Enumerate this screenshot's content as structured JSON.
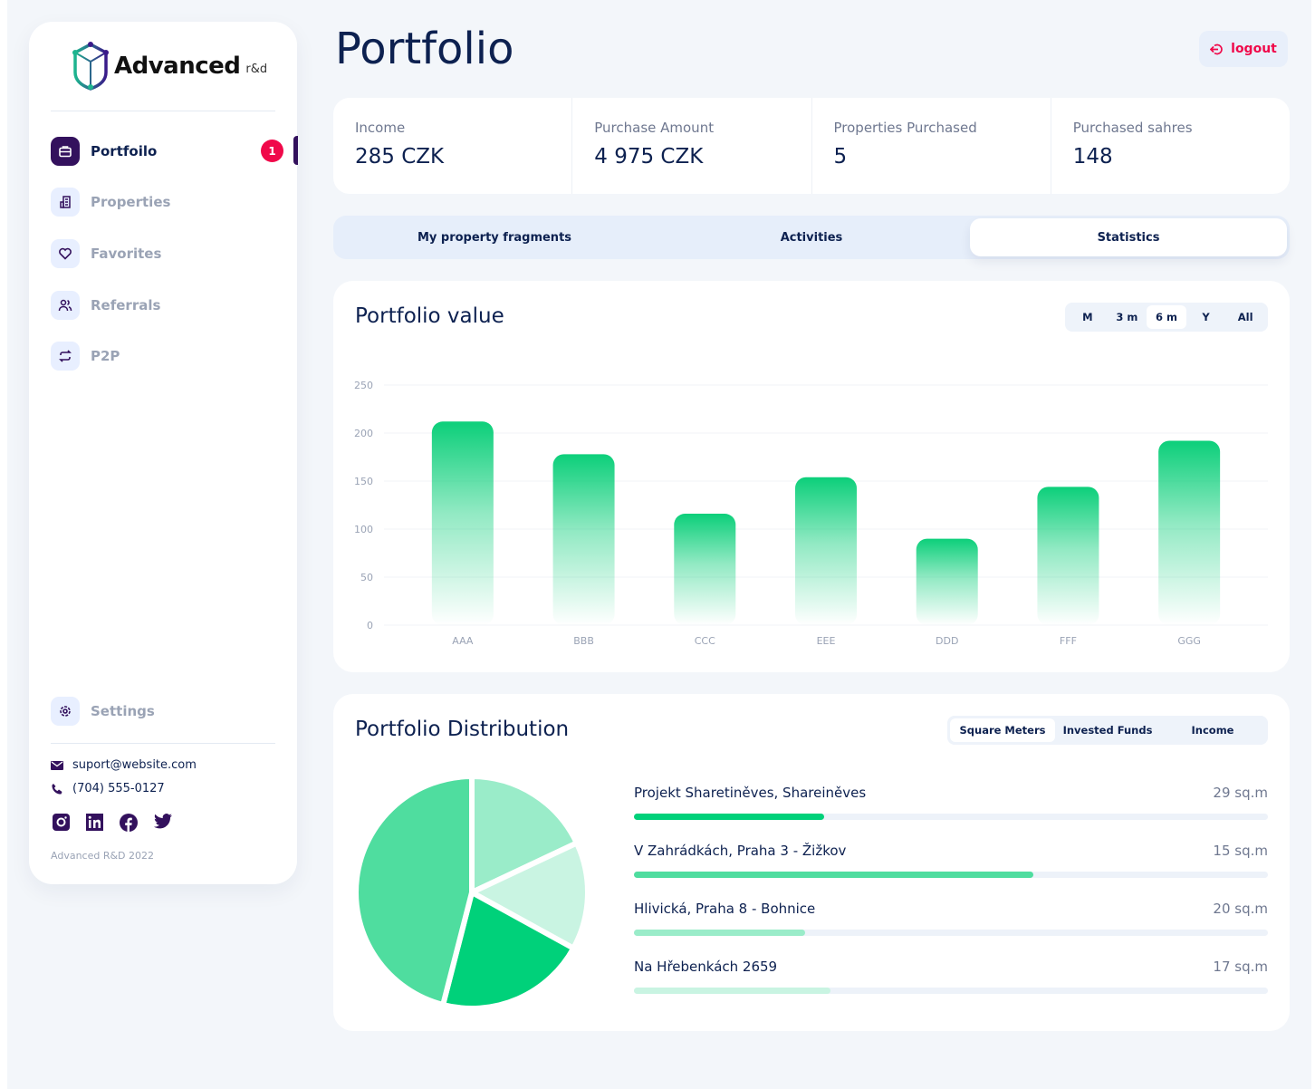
{
  "brand": {
    "name": "Advanced",
    "sub": "r&d"
  },
  "sidebar": {
    "items": [
      {
        "label": "Portfoilo",
        "icon": "briefcase-icon",
        "active": true,
        "badge": "1"
      },
      {
        "label": "Properties",
        "icon": "building-icon"
      },
      {
        "label": "Favorites",
        "icon": "heart-icon"
      },
      {
        "label": "Referrals",
        "icon": "users-icon"
      },
      {
        "label": "P2P",
        "icon": "swap-icon"
      }
    ],
    "settings": "Settings",
    "email": "suport@website.com",
    "phone": "(704) 555-0127",
    "socials": [
      "instagram-icon",
      "linkedin-icon",
      "facebook-icon",
      "twitter-icon"
    ],
    "copyright": "Advanced R&D 2022"
  },
  "header": {
    "title": "Portfolio",
    "logout": "logout"
  },
  "stats": [
    {
      "label": "Income",
      "value": "285 CZK"
    },
    {
      "label": "Purchase Amount",
      "value": "4 975 CZK"
    },
    {
      "label": "Properties Purchased",
      "value": "5"
    },
    {
      "label": "Purchased sahres",
      "value": "148"
    }
  ],
  "tabs": [
    {
      "label": "My property fragments"
    },
    {
      "label": "Activities"
    },
    {
      "label": "Statistics",
      "active": true
    }
  ],
  "portfolio_value": {
    "title": "Portfolio value",
    "ranges": [
      {
        "label": "M"
      },
      {
        "label": "3 m"
      },
      {
        "label": "6 m",
        "active": true
      },
      {
        "label": "Y"
      },
      {
        "label": "All"
      }
    ]
  },
  "chart_data": [
    {
      "type": "bar",
      "title": "Portfolio value",
      "categories": [
        "AAA",
        "BBB",
        "CCC",
        "EEE",
        "DDD",
        "FFF",
        "GGG"
      ],
      "values": [
        212,
        178,
        116,
        154,
        90,
        144,
        192
      ],
      "yticks": [
        "0",
        "50",
        "100",
        "150",
        "200",
        "250"
      ],
      "ylim": [
        0,
        250
      ],
      "grid": true,
      "color": "#0ccf7a"
    },
    {
      "type": "pie",
      "values": [
        18,
        15,
        21,
        46
      ],
      "colors": [
        "#9aecc9",
        "#c9f4e2",
        "#00d17a",
        "#4fdd9f"
      ]
    }
  ],
  "distribution": {
    "title": "Portfolio Distribution",
    "tabs": [
      {
        "label": "Square Meters",
        "active": true
      },
      {
        "label": "Invested Funds"
      },
      {
        "label": "Income"
      }
    ],
    "items": [
      {
        "name": "Projekt Sharetiněves, Shareiněves",
        "value": "29 sq.m",
        "progress": 30,
        "color": "#00d17a"
      },
      {
        "name": "V Zahrádkách, Praha 3 - Žižkov",
        "value": "15 sq.m",
        "progress": 63,
        "color": "#4fdd9f"
      },
      {
        "name": "Hlivická, Praha 8 - Bohnice",
        "value": "20 sq.m",
        "progress": 27,
        "color": "#9aecc9"
      },
      {
        "name": "Na Hřebenkách 2659",
        "value": "17 sq.m",
        "progress": 31,
        "color": "#c9f4e2"
      }
    ]
  }
}
